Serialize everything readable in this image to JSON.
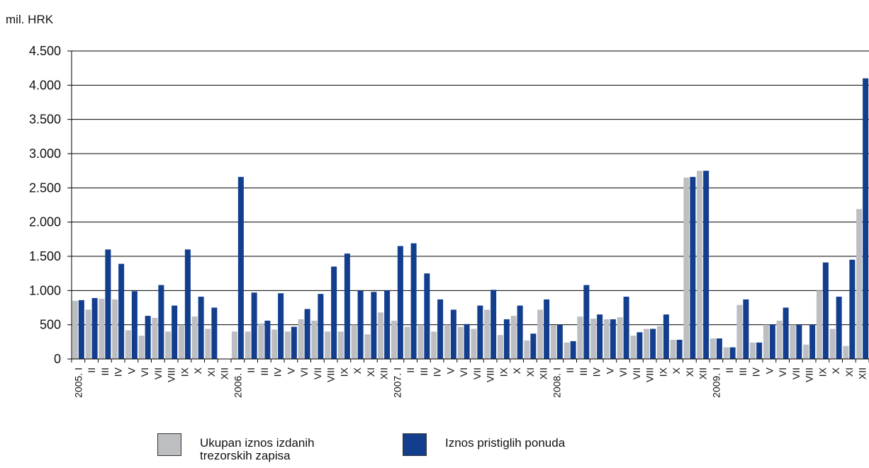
{
  "unit_label": "mil. HRK",
  "colors": {
    "issued": "#bdbec2",
    "offers": "#133e8e",
    "axis": "#000000",
    "grid": "#000000"
  },
  "legend": [
    {
      "label": "Ukupan iznos izdanih\ntrezorskih zapisa",
      "color": "#bdbec2"
    },
    {
      "label": "Iznos pristiglih ponuda",
      "color": "#133e8e"
    }
  ],
  "chart_data": {
    "type": "bar",
    "xlabel": "",
    "ylabel": "mil. HRK",
    "ylim": [
      0,
      4500
    ],
    "yticks": [
      0,
      500,
      1000,
      1500,
      2000,
      2500,
      3000,
      3500,
      4000,
      4500
    ],
    "ytick_labels": [
      "0",
      "500",
      "1.000",
      "1.500",
      "2.000",
      "2.500",
      "3.000",
      "3.500",
      "4.000",
      "4.500"
    ],
    "grid": true,
    "legend_position": "bottom",
    "categories": [
      "2005. I",
      "II",
      "III",
      "IV",
      "V",
      "VI",
      "VII",
      "VIII",
      "IX",
      "X",
      "XI",
      "XII",
      "2006. I",
      "II",
      "III",
      "IV",
      "V",
      "VI",
      "VII",
      "VIII",
      "IX",
      "X",
      "XI",
      "XII",
      "2007. I",
      "II",
      "III",
      "IV",
      "V",
      "VI",
      "VII",
      "VIII",
      "IX",
      "X",
      "XI",
      "XII",
      "2008. I",
      "II",
      "III",
      "IV",
      "V",
      "VI",
      "VII",
      "VIII",
      "IX",
      "X",
      "XI",
      "XII",
      "2009. I",
      "II",
      "III",
      "IV",
      "V",
      "VI",
      "VII",
      "VIII",
      "IX",
      "X",
      "XI",
      "XII"
    ],
    "series": [
      {
        "name": "Ukupan iznos izdanih trezorskih zapisa",
        "values": [
          850,
          720,
          880,
          870,
          420,
          340,
          600,
          400,
          500,
          620,
          440,
          0,
          400,
          400,
          520,
          430,
          400,
          580,
          560,
          400,
          400,
          500,
          360,
          680,
          560,
          470,
          500,
          400,
          500,
          470,
          440,
          720,
          350,
          630,
          270,
          720,
          490,
          240,
          620,
          590,
          580,
          610,
          340,
          440,
          480,
          280,
          2650,
          2750,
          300,
          170,
          790,
          240,
          500,
          560,
          500,
          210,
          1000,
          440,
          190,
          2190
        ]
      },
      {
        "name": "Iznos pristiglih ponuda",
        "values": [
          860,
          890,
          1600,
          1390,
          990,
          630,
          1080,
          780,
          1600,
          910,
          750,
          0,
          2660,
          970,
          560,
          960,
          470,
          730,
          950,
          1350,
          1540,
          1000,
          980,
          1000,
          1650,
          1690,
          1250,
          870,
          720,
          510,
          780,
          1010,
          580,
          780,
          370,
          870,
          500,
          260,
          1080,
          650,
          580,
          910,
          390,
          440,
          650,
          280,
          2660,
          2750,
          300,
          170,
          870,
          240,
          500,
          750,
          500,
          500,
          1410,
          910,
          1450,
          4100
        ]
      }
    ]
  }
}
